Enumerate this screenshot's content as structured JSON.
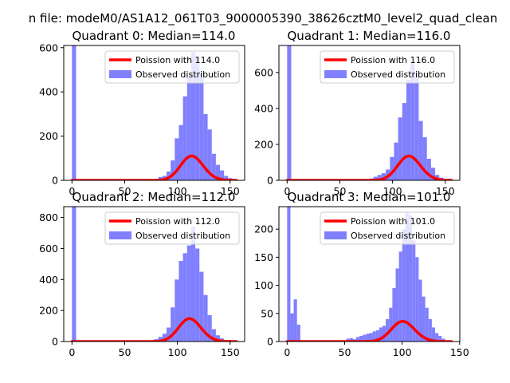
{
  "figure": {
    "suptitle": "n file: modeM0/AS1A12_061T03_9000005390_38626cztM0_level2_quad_clean"
  },
  "chart_data": [
    {
      "type": "bar",
      "title": "Quadrant 0: Median=114.0",
      "legend": {
        "line": "Poission with 114.0",
        "bars": "Observed distribution",
        "placement": "top-right"
      },
      "colors": {
        "line": "#ff0000",
        "bars": "#8080ff"
      },
      "xlim": [
        -7.8,
        163.8
      ],
      "ylim": [
        0,
        610
      ],
      "xticks": [
        0,
        50,
        100,
        150
      ],
      "yticks": [
        0,
        200,
        400,
        600
      ],
      "poisson_mean": 114,
      "poisson_scale": 2950,
      "hist": {
        "edges": [
          0,
          3.9,
          7.8,
          11.7,
          15.6,
          19.5,
          23.4,
          27.3,
          31.2,
          35.1,
          39,
          42.9,
          46.8,
          50.7,
          54.6,
          58.5,
          62.4,
          66.3,
          70.2,
          74.1,
          78,
          81.9,
          85.8,
          89.7,
          93.6,
          97.5,
          101.4,
          105.3,
          109.2,
          113.1,
          117,
          120.9,
          124.8,
          128.7,
          132.6,
          136.5,
          140.4,
          144.3,
          148.2,
          152.1,
          156
        ],
        "values": [
          610,
          0,
          0,
          0,
          0,
          0,
          0,
          0,
          0,
          0,
          0,
          0,
          0,
          0,
          0,
          0,
          0,
          0,
          0,
          0,
          0,
          15,
          20,
          40,
          90,
          190,
          250,
          380,
          470,
          580,
          560,
          480,
          300,
          230,
          120,
          70,
          45,
          20,
          10,
          4
        ]
      }
    },
    {
      "type": "bar",
      "title": "Quadrant 1: Median=116.0",
      "legend": {
        "line": "Poission with 116.0",
        "bars": "Observed distribution",
        "placement": "top-right"
      },
      "colors": {
        "line": "#ff0000",
        "bars": "#8080ff"
      },
      "xlim": [
        -7.8,
        163.8
      ],
      "ylim": [
        0,
        750
      ],
      "xticks": [
        0,
        50,
        100,
        150
      ],
      "yticks": [
        0,
        200,
        400,
        600
      ],
      "poisson_mean": 116,
      "poisson_scale": 3650,
      "hist": {
        "edges": [
          0,
          3.9,
          7.8,
          11.7,
          15.6,
          19.5,
          23.4,
          27.3,
          31.2,
          35.1,
          39,
          42.9,
          46.8,
          50.7,
          54.6,
          58.5,
          62.4,
          66.3,
          70.2,
          74.1,
          78,
          81.9,
          85.8,
          89.7,
          93.6,
          97.5,
          101.4,
          105.3,
          109.2,
          113.1,
          117,
          120.9,
          124.8,
          128.7,
          132.6,
          136.5,
          140.4,
          144.3,
          148.2,
          152.1,
          156
        ],
        "values": [
          750,
          0,
          0,
          0,
          0,
          0,
          0,
          0,
          0,
          0,
          0,
          0,
          0,
          0,
          0,
          0,
          0,
          0,
          0,
          0,
          10,
          20,
          30,
          40,
          60,
          130,
          210,
          350,
          430,
          560,
          660,
          590,
          330,
          240,
          120,
          70,
          30,
          15,
          5,
          2
        ]
      }
    },
    {
      "type": "bar",
      "title": "Quadrant 2: Median=112.0",
      "legend": {
        "line": "Poission with 112.0",
        "bars": "Observed distribution",
        "placement": "top-right"
      },
      "colors": {
        "line": "#ff0000",
        "bars": "#8080ff"
      },
      "xlim": [
        -7.8,
        163.8
      ],
      "ylim": [
        0,
        870
      ],
      "xticks": [
        0,
        50,
        100,
        150
      ],
      "yticks": [
        0,
        200,
        400,
        600,
        800
      ],
      "poisson_mean": 112,
      "poisson_scale": 3920,
      "hist": {
        "edges": [
          0,
          3.9,
          7.8,
          11.7,
          15.6,
          19.5,
          23.4,
          27.3,
          31.2,
          35.1,
          39,
          42.9,
          46.8,
          50.7,
          54.6,
          58.5,
          62.4,
          66.3,
          70.2,
          74.1,
          78,
          81.9,
          85.8,
          89.7,
          93.6,
          97.5,
          101.4,
          105.3,
          109.2,
          113.1,
          117,
          120.9,
          124.8,
          128.7,
          132.6,
          136.5,
          140.4,
          144.3,
          148.2,
          152.1,
          156
        ],
        "values": [
          870,
          0,
          0,
          0,
          0,
          0,
          0,
          0,
          0,
          0,
          0,
          0,
          0,
          0,
          0,
          0,
          0,
          0,
          0,
          0,
          15,
          30,
          50,
          90,
          220,
          400,
          520,
          570,
          620,
          740,
          600,
          450,
          300,
          170,
          80,
          40,
          20,
          8,
          3,
          1
        ]
      }
    },
    {
      "type": "bar",
      "title": "Quadrant 3: Median=101.0",
      "legend": {
        "line": "Poission with 101.0",
        "bars": "Observed distribution",
        "placement": "top-right"
      },
      "colors": {
        "line": "#ff0000",
        "bars": "#8080ff"
      },
      "xlim": [
        -7.15,
        150.15
      ],
      "ylim": [
        0,
        240
      ],
      "xticks": [
        0,
        50,
        100,
        150
      ],
      "yticks": [
        0,
        50,
        100,
        150,
        200
      ],
      "poisson_mean": 101,
      "poisson_scale": 905,
      "hist": {
        "edges": [
          0,
          2.86,
          5.72,
          8.58,
          11.44,
          14.3,
          17.16,
          20.02,
          22.88,
          25.74,
          28.6,
          31.46,
          34.32,
          37.18,
          40.04,
          42.9,
          45.76,
          48.62,
          51.48,
          54.34,
          57.2,
          60.06,
          62.92,
          65.78,
          68.64,
          71.5,
          74.36,
          77.22,
          80.08,
          82.94,
          85.8,
          88.66,
          91.52,
          94.38,
          97.24,
          100.1,
          102.96,
          105.82,
          108.68,
          111.54,
          114.4,
          117.26,
          120.12,
          122.98,
          125.84,
          128.7,
          131.56,
          134.42,
          137.28,
          140.14,
          143
        ],
        "values": [
          240,
          50,
          75,
          30,
          0,
          0,
          0,
          0,
          0,
          0,
          0,
          0,
          0,
          0,
          0,
          0,
          0,
          0,
          5,
          6,
          4,
          8,
          10,
          12,
          14,
          15,
          18,
          20,
          25,
          28,
          40,
          60,
          95,
          130,
          160,
          200,
          230,
          225,
          180,
          150,
          110,
          80,
          60,
          40,
          25,
          15,
          10,
          5,
          2,
          1
        ]
      }
    }
  ]
}
